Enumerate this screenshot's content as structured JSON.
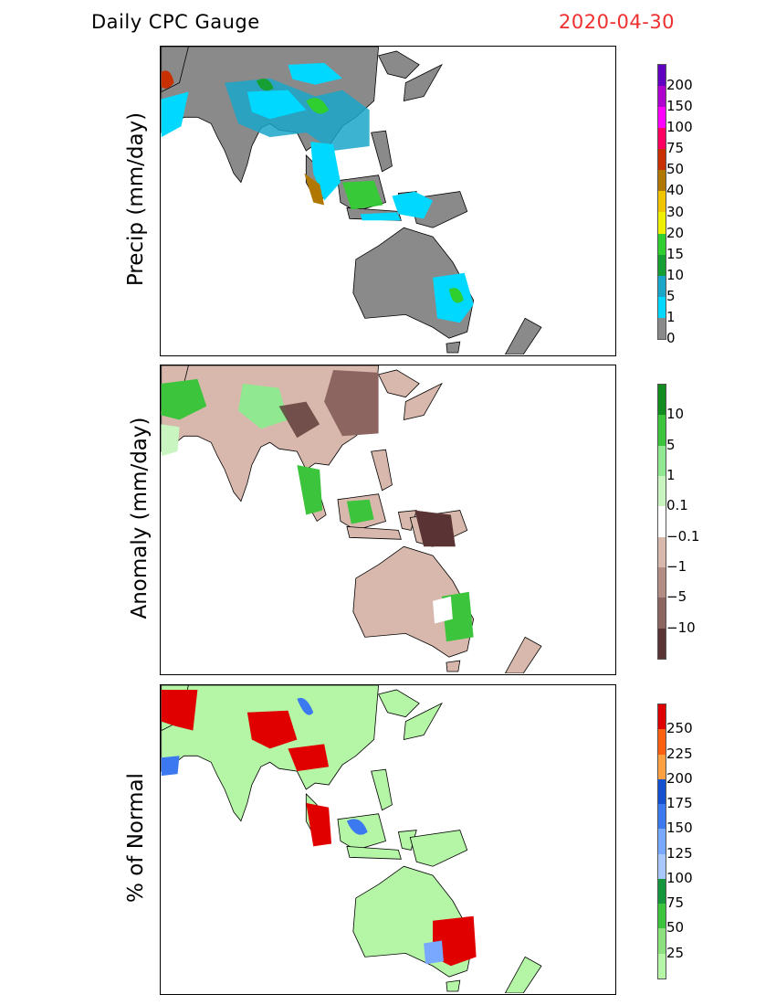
{
  "title": "Daily CPC Gauge",
  "date": "2020-04-30",
  "date_color": "#ee3030",
  "panels": [
    {
      "ylabel": "Precip (mm/day)",
      "land_color": "#8a8a8a",
      "legend": {
        "colors": [
          "#8a8a8a",
          "#00d8ff",
          "#1aa6c8",
          "#16a034",
          "#2ecf2e",
          "#eef000",
          "#f0c400",
          "#b07800",
          "#c83000",
          "#ff0060",
          "#ff00ff",
          "#b000d0",
          "#6000c0"
        ],
        "labels": [
          "0",
          "1",
          "5",
          "10",
          "15",
          "20",
          "30",
          "40",
          "50",
          "75",
          "100",
          "150",
          "200"
        ]
      }
    },
    {
      "ylabel": "Anomaly (mm/day)",
      "land_color": "#d8b8ac",
      "legend": {
        "colors": [
          "#5a3434",
          "#8c6460",
          "#b48c84",
          "#d8b8ac",
          "#ffffff",
          "#c8f5c0",
          "#90e890",
          "#3cc43c",
          "#108c20"
        ],
        "labels": [
          "−10",
          "−5",
          "−1",
          "−0.1",
          "0.1",
          "1",
          "5",
          "10"
        ]
      }
    },
    {
      "ylabel": "% of Normal",
      "land_color": "#b4f5a6",
      "legend": {
        "colors": [
          "#b4f5a6",
          "#8ce07e",
          "#3cc43c",
          "#14963c",
          "#a8c8ff",
          "#78a8ff",
          "#3c78f0",
          "#1450d0",
          "#ffa040",
          "#ff6010",
          "#e00000"
        ],
        "labels": [
          "25",
          "50",
          "75",
          "100",
          "125",
          "150",
          "175",
          "200",
          "225",
          "250"
        ]
      }
    }
  ]
}
